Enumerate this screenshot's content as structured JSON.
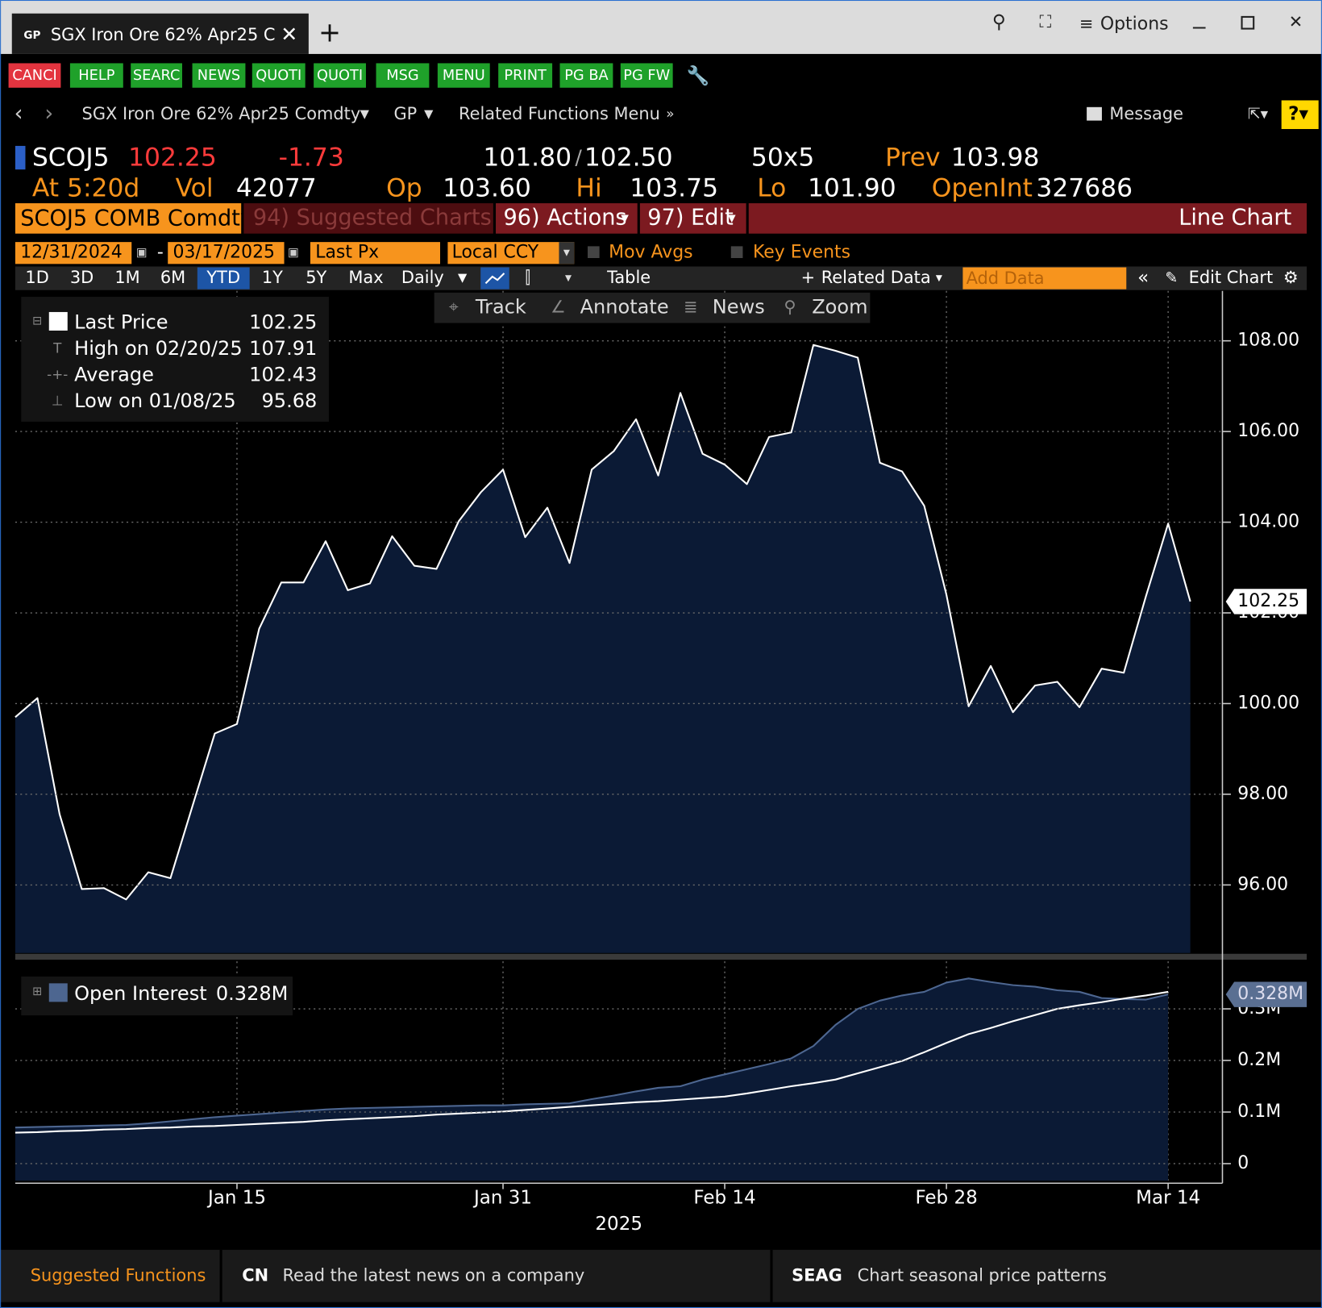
{
  "window": {
    "app_tag": "GP",
    "tab_title": "SGX Iron Ore 62%  Apr25 C",
    "options": "Options"
  },
  "toolbar": [
    {
      "label": "CANCI",
      "color": "#e3343f"
    },
    {
      "label": "HELP",
      "color": "#1fa12a"
    },
    {
      "label": "SEARC",
      "color": "#1fa12a"
    },
    {
      "label": "NEWS",
      "color": "#1fa12a"
    },
    {
      "label": "QUOTI",
      "color": "#1fa12a"
    },
    {
      "label": "QUOTI",
      "color": "#1fa12a"
    },
    {
      "label": "MSG",
      "color": "#1fa12a"
    },
    {
      "label": "MENU",
      "color": "#1fa12a"
    },
    {
      "label": "PRINT",
      "color": "#1fa12a"
    },
    {
      "label": "PG BA",
      "color": "#1fa12a"
    },
    {
      "label": "PG FW",
      "color": "#1fa12a"
    }
  ],
  "nav": {
    "security": "SGX Iron Ore 62% Apr25 Comdty",
    "function": "GP",
    "related": "Related Functions Menu",
    "message": "Message"
  },
  "quote": {
    "ticker": "SCOJ5",
    "last": "102.25",
    "change": "-1.73",
    "bid": "101.80",
    "ask": "102.50",
    "size": "50x5",
    "prev_label": "Prev",
    "prev": "103.98",
    "at": "At 5:20d",
    "vol_label": "Vol",
    "vol": "42077",
    "op_label": "Op",
    "op": "103.60",
    "hi_label": "Hi",
    "hi": "103.75",
    "lo_label": "Lo",
    "lo": "101.90",
    "oi_label": "OpenInt",
    "oi": "327686"
  },
  "menu_bar": {
    "security": "SCOJ5 COMB Comdty",
    "suggested": "94) Suggested Charts",
    "actions": "96) Actions",
    "edit": "97) Edit",
    "chart_type": "Line Chart"
  },
  "settings": {
    "start": "12/31/2024",
    "end": "03/17/2025",
    "field": "Last Px",
    "currency": "Local CCY",
    "mov_avgs": "Mov Avgs",
    "key_events": "Key Events"
  },
  "periods": [
    "1D",
    "3D",
    "1M",
    "6M",
    "YTD",
    "1Y",
    "5Y",
    "Max"
  ],
  "active_period": "YTD",
  "frequency": "Daily",
  "table": "Table",
  "related_data": "Related Data",
  "add_data": "Add Data",
  "edit_chart": "Edit Chart",
  "chart_tools": [
    "Track",
    "Annotate",
    "News",
    "Zoom"
  ],
  "footer": {
    "suggested": "Suggested Functions",
    "items": [
      {
        "code": "CN",
        "text": "Read the latest news on a company"
      },
      {
        "code": "SEAG",
        "text": "Chart seasonal price patterns"
      }
    ]
  },
  "chart_data": [
    {
      "type": "area",
      "categories": [
        null,
        null,
        null,
        null,
        null,
        null,
        null,
        null,
        null,
        null,
        "Jan 15",
        null,
        null,
        null,
        null,
        null,
        null,
        null,
        null,
        null,
        null,
        null,
        "Jan 31",
        null,
        null,
        null,
        null,
        null,
        null,
        null,
        null,
        null,
        "Feb 14",
        null,
        null,
        null,
        null,
        null,
        null,
        null,
        null,
        null,
        "Feb 28",
        null,
        null,
        null,
        null,
        null,
        null,
        null,
        null,
        null,
        "Mar 14",
        null
      ],
      "x_label": "2025",
      "series": [
        {
          "name": "Last Price",
          "color": "#ffffff",
          "fill": "#0b1a35",
          "values": [
            99.7,
            100.12,
            97.56,
            95.91,
            95.93,
            95.68,
            96.28,
            96.15,
            97.75,
            99.34,
            99.55,
            101.65,
            102.67,
            102.67,
            103.58,
            102.5,
            102.65,
            103.69,
            103.04,
            102.97,
            104.02,
            104.66,
            105.16,
            103.67,
            104.32,
            103.1,
            105.16,
            105.57,
            106.27,
            105.03,
            106.85,
            105.51,
            105.27,
            104.84,
            105.88,
            105.98,
            107.91,
            107.78,
            107.63,
            105.31,
            105.12,
            104.36,
            102.4,
            99.94,
            100.83,
            99.81,
            100.4,
            100.48,
            99.92,
            100.77,
            100.68,
            102.37,
            103.97,
            102.25
          ]
        }
      ],
      "last_value_label": "102.25",
      "stats": [
        {
          "label": "Last Price",
          "value": "102.25"
        },
        {
          "label": "High on 02/20/25",
          "value": "107.91"
        },
        {
          "label": "Average",
          "value": "102.43"
        },
        {
          "label": "Low on 01/08/25",
          "value": "95.68"
        }
      ],
      "ylim": [
        94.5,
        109.1
      ],
      "yticks": [
        {
          "value": 96,
          "label": "96.00"
        },
        {
          "value": 98,
          "label": "98.00"
        },
        {
          "value": 100,
          "label": "100.00"
        },
        {
          "value": 102,
          "label": "102.00"
        },
        {
          "value": 104,
          "label": "104.00"
        },
        {
          "value": 106,
          "label": "106.00"
        },
        {
          "value": 108,
          "label": "108.00"
        }
      ],
      "grid": true
    },
    {
      "type": "area",
      "series": [
        {
          "name": "Open Interest",
          "color": "#4d6690",
          "fill": "#0b1a35",
          "legend_value": "0.328M",
          "values": [
            0.07,
            0.071,
            0.072,
            0.073,
            0.074,
            0.075,
            0.078,
            0.082,
            0.086,
            0.09,
            0.093,
            0.096,
            0.099,
            0.102,
            0.105,
            0.107,
            0.108,
            0.109,
            0.11,
            0.111,
            0.112,
            0.113,
            0.113,
            0.115,
            0.116,
            0.117,
            0.125,
            0.132,
            0.14,
            0.147,
            0.15,
            0.163,
            0.173,
            0.183,
            0.193,
            0.204,
            0.228,
            0.269,
            0.3,
            0.316,
            0.326,
            0.333,
            0.351,
            0.359,
            0.352,
            0.346,
            0.343,
            0.336,
            0.333,
            0.321,
            0.319,
            0.318,
            0.328,
            null
          ]
        },
        {
          "color": "#ffffff",
          "values": [
            0.06,
            0.061,
            0.063,
            0.064,
            0.066,
            0.067,
            0.069,
            0.07,
            0.072,
            0.073,
            0.075,
            0.077,
            0.079,
            0.081,
            0.084,
            0.086,
            0.088,
            0.09,
            0.092,
            0.095,
            0.097,
            0.099,
            0.101,
            0.104,
            0.107,
            0.11,
            0.113,
            0.116,
            0.119,
            0.121,
            0.124,
            0.127,
            0.13,
            0.136,
            0.143,
            0.15,
            0.156,
            0.163,
            0.175,
            0.187,
            0.199,
            0.216,
            0.234,
            0.251,
            0.263,
            0.276,
            0.288,
            0.3,
            0.307,
            0.313,
            0.32,
            0.326,
            0.333,
            null
          ]
        }
      ],
      "last_value_label": "0.328M",
      "ylim": [
        -0.033,
        0.392
      ],
      "yticks": [
        0,
        {
          "value": 0.1,
          "label": "0.1M"
        },
        {
          "value": 0.2,
          "label": "0.2M"
        },
        {
          "value": 0.3,
          "label": "0.3M"
        }
      ],
      "grid": true
    }
  ]
}
